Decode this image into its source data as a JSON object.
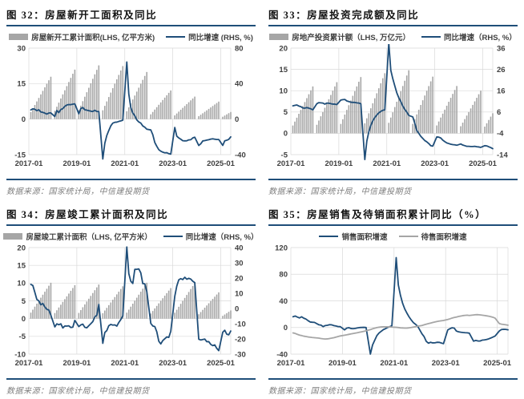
{
  "source_note": "数据来源：国家统计局，中信建投期货",
  "theme": {
    "accent_line_color": "#1f4e79",
    "bar_color": "#a6a6a6",
    "grid_color": "#d9d9d9",
    "axis_text_color": "#404040",
    "source_text_color": "#7f7f7f"
  },
  "chart_data": [
    {
      "type": "bar+line",
      "title": "图 32：房屋新开工面积及同比",
      "legend": [
        "房屋新开工累计面积(LHS, 亿平方米)",
        "同比增速 (RHS, %)"
      ],
      "x": {
        "start": "2017-01",
        "end": "2025-06",
        "tick_labels": [
          "2017-01",
          "2019-01",
          "2021-01",
          "2023-01",
          "2025-01"
        ],
        "tick_month_offsets": [
          0,
          24,
          48,
          72,
          96
        ]
      },
      "left_axis": {
        "title": "房屋新开工累计面积 (亿平方米)",
        "range": [
          -15,
          30
        ],
        "ticks": [
          30,
          15,
          0,
          -15
        ]
      },
      "right_axis": {
        "title": "同比增速 (%)",
        "range": [
          -40,
          80
        ],
        "ticks": [
          80,
          40,
          0,
          -40
        ]
      },
      "bars": {
        "name": "房屋新开工累计面积",
        "axis": "left",
        "pattern": "年内逐月累计、每年重置(1月无数据)",
        "annual_year_end_values": {
          "2017": 17.9,
          "2018": 20.9,
          "2019": 22.7,
          "2020": 22.4,
          "2021": 19.9,
          "2022": 12.1,
          "2023": 9.5,
          "2024": 7.4,
          "2025": 3.0
        },
        "final_year_last_month": 6
      },
      "line": {
        "name": "同比增速",
        "axis": "right",
        "start": "2017-02",
        "monthly_skip_january": true,
        "values": [
          10.4,
          11.6,
          11.1,
          9.5,
          10.6,
          8.0,
          7.6,
          6.8,
          5.6,
          6.9,
          7.0,
          2.9,
          9.7,
          7.3,
          10.8,
          11.8,
          14.4,
          15.9,
          16.4,
          16.3,
          16.8,
          17.2,
          6.0,
          11.9,
          13.1,
          10.5,
          10.1,
          9.5,
          8.9,
          8.6,
          10.0,
          8.6,
          8.5,
          -44.9,
          -27.2,
          -18.4,
          -12.8,
          -7.6,
          -4.5,
          -3.6,
          -3.4,
          -2.6,
          -2.0,
          -1.2,
          64.3,
          28.2,
          12.9,
          6.9,
          3.8,
          -0.9,
          -3.2,
          -4.5,
          -7.7,
          -9.1,
          -11.4,
          -12.2,
          -17.5,
          -26.3,
          -30.6,
          -34.4,
          -36.1,
          -37.2,
          -38.0,
          -37.8,
          -38.9,
          -39.4,
          -9.4,
          -19.2,
          -21.2,
          -22.6,
          -24.3,
          -24.5,
          -24.4,
          -23.4,
          -23.2,
          -21.2,
          -20.4,
          -29.7,
          -27.8,
          -24.6,
          -24.2,
          -23.7,
          -23.2,
          -22.5,
          -22.2,
          -22.6,
          -23.0,
          -23.0,
          -29.6,
          -24.4,
          -23.8,
          -22.8,
          -20.0
        ]
      }
    },
    {
      "type": "bar+line",
      "title": "图 33：房屋投资完成额及同比",
      "legend": [
        "房地产投资累计额（LHS, 万亿元）",
        "同比增速（RHS, %）"
      ],
      "x": {
        "start": "2017-01",
        "end": "2025-06",
        "tick_labels": [
          "2017-01",
          "2019-01",
          "2021-01",
          "2023-01",
          "2025-01"
        ],
        "tick_month_offsets": [
          0,
          24,
          48,
          72,
          96
        ]
      },
      "left_axis": {
        "title": "房地产投资累计额 (万亿元)",
        "range": [
          -5,
          20
        ],
        "ticks": [
          20,
          15,
          10,
          5,
          0,
          -5
        ]
      },
      "right_axis": {
        "title": "同比增速 (%)",
        "range": [
          -14,
          36
        ],
        "ticks": [
          36,
          26,
          16,
          6,
          -4,
          -14
        ]
      },
      "bars": {
        "name": "房地产投资累计额",
        "axis": "left",
        "pattern": "年内逐月累计、每年重置(1月无数据)",
        "annual_year_end_values": {
          "2017": 11.0,
          "2018": 12.0,
          "2019": 13.2,
          "2020": 14.1,
          "2021": 14.8,
          "2022": 13.3,
          "2023": 11.1,
          "2024": 10.0,
          "2025": 4.7
        },
        "final_year_last_month": 6
      },
      "line": {
        "name": "同比增速",
        "axis": "right",
        "start": "2017-02",
        "monthly_skip_january": true,
        "values": [
          8.9,
          9.1,
          9.3,
          8.8,
          8.5,
          7.9,
          7.8,
          8.1,
          7.8,
          7.5,
          7.0,
          9.9,
          10.4,
          10.3,
          10.2,
          9.7,
          10.2,
          10.1,
          9.9,
          9.7,
          9.7,
          9.5,
          11.6,
          11.8,
          11.9,
          11.2,
          10.9,
          10.6,
          10.5,
          10.5,
          10.3,
          10.2,
          9.9,
          -16.3,
          -7.7,
          -3.3,
          -0.3,
          1.9,
          3.4,
          4.6,
          5.6,
          6.3,
          6.8,
          7.0,
          38.3,
          25.6,
          21.6,
          18.3,
          15.0,
          12.7,
          10.9,
          8.8,
          7.2,
          6.0,
          4.4,
          3.7,
          0.7,
          -2.7,
          -4.0,
          -5.4,
          -6.4,
          -7.4,
          -8.0,
          -8.8,
          -9.8,
          -10.0,
          -5.7,
          -5.8,
          -6.2,
          -7.2,
          -7.9,
          -8.5,
          -8.8,
          -9.1,
          -9.3,
          -9.4,
          -9.6,
          -9.0,
          -9.5,
          -9.8,
          -10.1,
          -10.1,
          -10.2,
          -10.2,
          -10.1,
          -10.3,
          -10.4,
          -10.6,
          -9.8,
          -9.9,
          -10.3,
          -10.7,
          -11.2
        ]
      }
    },
    {
      "type": "bar+line",
      "title": "图 34：房屋竣工累计面积及同比",
      "legend": [
        "房屋竣工累计面积（LHS, 亿平方米）",
        "同比增速（RHS, %）"
      ],
      "x": {
        "start": "2017-01",
        "end": "2025-06",
        "tick_labels": [
          "2017-01",
          "2019-01",
          "2021-01",
          "2023-01",
          "2025-01"
        ],
        "tick_month_offsets": [
          0,
          24,
          48,
          72,
          96
        ]
      },
      "left_axis": {
        "title": "房屋竣工累计面积 (亿平方米)",
        "range": [
          -10,
          20
        ],
        "ticks": [
          20,
          15,
          10,
          5,
          0,
          -5,
          -10
        ]
      },
      "right_axis": {
        "title": "同比增速 (%)",
        "range": [
          -30,
          40
        ],
        "ticks": [
          40,
          30,
          20,
          10,
          0,
          -10,
          -20,
          -30
        ]
      },
      "bars": {
        "name": "房屋竣工累计面积",
        "axis": "left",
        "pattern": "年内逐月累计、每年重置(1月无数据)",
        "annual_year_end_values": {
          "2017": 10.1,
          "2018": 9.4,
          "2019": 9.6,
          "2020": 9.1,
          "2021": 10.1,
          "2022": 8.6,
          "2023": 10.0,
          "2024": 7.4,
          "2025": 2.3
        },
        "final_year_last_month": 6
      },
      "line": {
        "name": "同比增速",
        "axis": "right",
        "start": "2017-02",
        "monthly_skip_january": true,
        "values": [
          15.8,
          15.1,
          10.6,
          5.9,
          5.0,
          2.4,
          3.3,
          1.0,
          -0.6,
          -1.0,
          -4.4,
          -12.1,
          -10.1,
          -10.7,
          -10.1,
          -12.8,
          -11.5,
          -11.6,
          -11.4,
          -12.5,
          -12.3,
          -7.8,
          -11.9,
          -10.8,
          -10.3,
          -12.4,
          -12.7,
          -11.3,
          -10.0,
          -8.6,
          -5.5,
          -4.5,
          2.6,
          -22.9,
          -15.8,
          -14.5,
          -11.3,
          -10.5,
          -10.9,
          -10.8,
          -11.6,
          -9.2,
          -7.3,
          -4.9,
          40.4,
          22.9,
          17.9,
          16.4,
          25.7,
          25.7,
          26.0,
          23.4,
          16.3,
          16.2,
          11.2,
          -9.8,
          -11.5,
          -11.9,
          -15.3,
          -21.5,
          -23.3,
          -21.1,
          -19.9,
          -18.7,
          -19.0,
          -15.0,
          8.0,
          14.7,
          18.8,
          19.6,
          19.0,
          20.5,
          19.2,
          19.8,
          19.3,
          17.9,
          17.0,
          -20.2,
          -20.7,
          -20.4,
          -20.1,
          -21.8,
          -21.8,
          -23.6,
          -24.4,
          -23.9,
          -26.2,
          -27.7,
          -15.6,
          -14.3,
          -16.9,
          -17.3,
          -14.8
        ]
      }
    },
    {
      "type": "line",
      "title": "图 35：房屋销售及待销面积累计同比（%）",
      "legend": [
        "销售面积增速",
        "待售面积增速"
      ],
      "x": {
        "start": "2017-01",
        "end": "2025-06",
        "tick_labels": [
          "2017-01",
          "2019-01",
          "2021-01",
          "2023-01",
          "2025-01"
        ],
        "tick_month_offsets": [
          0,
          24,
          48,
          72,
          96
        ]
      },
      "left_axis": {
        "title": "累计同比 (%)",
        "range": [
          -40,
          120
        ],
        "ticks": [
          120,
          80,
          40,
          0,
          -40
        ]
      },
      "lines": [
        {
          "name": "销售面积增速",
          "color": "#1f4e79",
          "start": "2017-02",
          "monthly_skip_january": true,
          "values": [
            16.1,
            17.2,
            15.7,
            14.3,
            16.1,
            14.0,
            12.7,
            10.3,
            8.2,
            7.9,
            7.7,
            4.1,
            3.6,
            1.3,
            2.9,
            3.3,
            4.2,
            4.0,
            2.9,
            2.2,
            1.4,
            1.3,
            -3.6,
            -0.9,
            -0.3,
            -1.6,
            -1.8,
            -1.3,
            -0.6,
            -0.1,
            0.1,
            0.2,
            -0.1,
            -39.9,
            -26.3,
            -19.3,
            -12.3,
            -8.4,
            -5.8,
            -3.3,
            -1.8,
            0.0,
            1.3,
            2.6,
            104.9,
            63.8,
            48.1,
            36.3,
            27.7,
            21.5,
            15.9,
            11.3,
            7.3,
            4.8,
            1.9,
            -9.6,
            -13.8,
            -20.9,
            -23.6,
            -22.2,
            -23.1,
            -23.0,
            -22.2,
            -22.3,
            -23.3,
            -24.3,
            -3.6,
            -1.8,
            -0.4,
            -0.9,
            -5.3,
            -6.5,
            -7.1,
            -7.5,
            -7.8,
            -8.0,
            -8.5,
            -20.5,
            -19.4,
            -20.2,
            -20.3,
            -19.0,
            -18.6,
            -18.0,
            -17.1,
            -15.8,
            -14.3,
            -12.9,
            -5.1,
            -3.0,
            -2.8,
            -2.9,
            -3.5
          ]
        },
        {
          "name": "待售面积增速",
          "color": "#a6a6a6",
          "start": "2017-02",
          "monthly_skip_january": true,
          "values": [
            -8.1,
            -8.9,
            -10.2,
            -11.4,
            -12.1,
            -13.0,
            -13.6,
            -14.2,
            -14.6,
            -15.0,
            -15.3,
            -15.9,
            -16.5,
            -17.0,
            -17.3,
            -17.1,
            -16.6,
            -16.0,
            -15.3,
            -14.4,
            -13.5,
            -12.7,
            -11.6,
            -11.0,
            -10.3,
            -9.6,
            -9.0,
            -8.4,
            -7.8,
            -7.1,
            -6.4,
            -5.7,
            -4.9,
            -3.2,
            -2.0,
            -1.0,
            -0.2,
            0.4,
            0.8,
            1.0,
            1.1,
            1.0,
            0.9,
            0.6,
            0.2,
            -0.1,
            -0.5,
            -0.7,
            -0.9,
            -0.8,
            -0.5,
            0.0,
            0.6,
            1.2,
            2.0,
            3.0,
            4.0,
            5.0,
            5.8,
            6.6,
            7.5,
            8.3,
            9.0,
            9.6,
            10.1,
            10.5,
            12.0,
            13.0,
            14.2,
            15.0,
            15.7,
            16.5,
            17.2,
            17.8,
            18.2,
            18.5,
            18.0,
            18.8,
            19.2,
            19.3,
            19.0,
            18.5,
            18.0,
            17.5,
            17.0,
            16.3,
            15.4,
            14.0,
            5.8,
            5.0,
            4.5,
            4.0,
            3.5
          ]
        }
      ]
    }
  ]
}
